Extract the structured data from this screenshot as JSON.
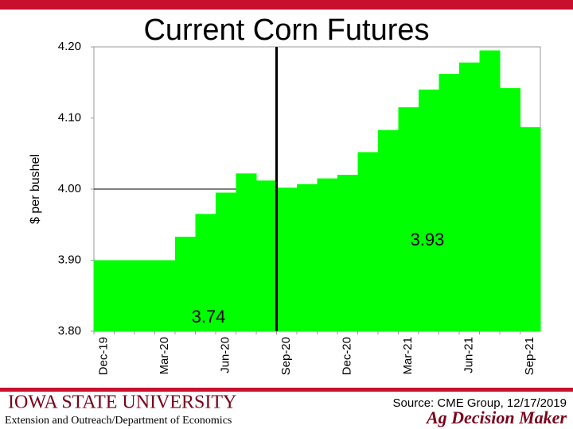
{
  "chart_data": {
    "type": "bar",
    "title": "Current Corn Futures",
    "y_label": "$ per bushel",
    "categories": [
      "Dec-19",
      null,
      null,
      "Mar-20",
      null,
      null,
      "Jun-20",
      null,
      null,
      "Sep-20",
      null,
      null,
      "Dec-20",
      null,
      null,
      "Mar-21",
      null,
      null,
      "Jun-21",
      null,
      null,
      "Sep-21"
    ],
    "values": [
      3.9,
      3.9,
      3.9,
      3.9,
      3.933,
      3.965,
      3.995,
      4.022,
      4.012,
      4.002,
      4.007,
      4.015,
      4.02,
      4.052,
      4.083,
      4.115,
      4.14,
      4.162,
      4.178,
      4.195,
      4.142,
      4.087
    ],
    "color": "#00ff00",
    "ylim": [
      3.8,
      4.2
    ],
    "yticks": [
      {
        "value": 3.8,
        "label": "3.80"
      },
      {
        "value": 3.9,
        "label": "3.90"
      },
      {
        "value": 4.0,
        "label": "4.00"
      },
      {
        "value": 4.1,
        "label": "4.10"
      },
      {
        "value": 4.2,
        "label": "4.20"
      }
    ],
    "hline": 4.0,
    "vline_category": "Sep-20",
    "annotations": [
      "3.74",
      "3.93"
    ]
  },
  "footer": {
    "university": "IOWA STATE UNIVERSITY",
    "department": "Extension and Outreach/Department of Economics",
    "source": "Source: CME Group, 12/17/2019",
    "brand": "Ag Decision Maker"
  }
}
